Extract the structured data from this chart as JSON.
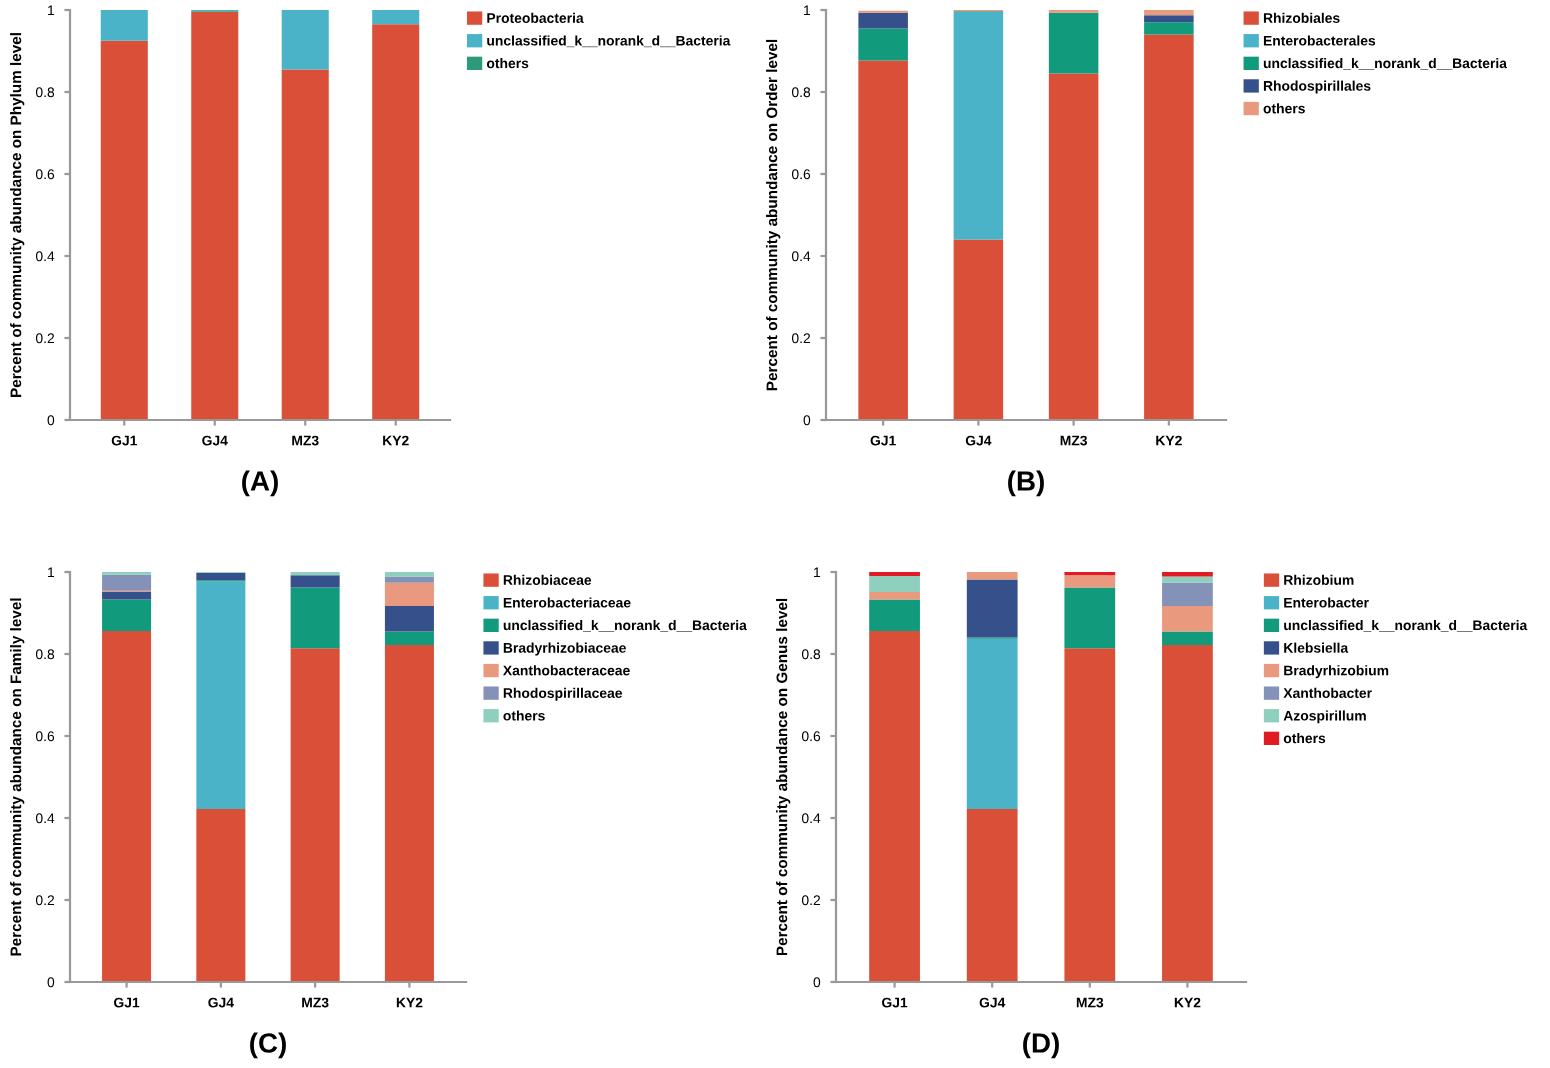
{
  "chart_data": [
    {
      "type": "bar",
      "stacked": true,
      "xlabel": "(A)",
      "ylabel": "Percent of community abundance on Phylum level",
      "categories": [
        "GJ1",
        "GJ4",
        "MZ3",
        "KY2"
      ],
      "ylim": [
        0,
        1
      ],
      "yticks": [
        0,
        0.2,
        0.4,
        0.6,
        0.8,
        1
      ],
      "grid": false,
      "legend": "right",
      "series": [
        {
          "name": "Proteobacteria",
          "color": "#d94f38",
          "values": [
            0.925,
            0.995,
            0.855,
            0.965
          ]
        },
        {
          "name": "unclassified_k__norank_d__Bacteria",
          "color": "#4ab3c8",
          "values": [
            0.075,
            0.003,
            0.145,
            0.035
          ]
        },
        {
          "name": "others",
          "color": "#2e9a7c",
          "values": [
            0,
            0.002,
            0,
            0
          ]
        }
      ]
    },
    {
      "type": "bar",
      "stacked": true,
      "xlabel": "(B)",
      "ylabel": "Percent of community abundance on Order level",
      "categories": [
        "GJ1",
        "GJ4",
        "MZ3",
        "KY2"
      ],
      "ylim": [
        0,
        1
      ],
      "yticks": [
        0,
        0.2,
        0.4,
        0.6,
        0.8,
        1
      ],
      "grid": false,
      "legend": "right",
      "series": [
        {
          "name": "Rhizobiales",
          "color": "#d94f38",
          "values": [
            0.877,
            0.44,
            0.845,
            0.94
          ]
        },
        {
          "name": "Enterobacterales",
          "color": "#4ab3c8",
          "values": [
            0,
            0.555,
            0,
            0
          ]
        },
        {
          "name": "unclassified_k__norank_d__Bacteria",
          "color": "#119a7c",
          "values": [
            0.078,
            0.002,
            0.148,
            0.03
          ]
        },
        {
          "name": "Rhodospirillales",
          "color": "#35508a",
          "values": [
            0.038,
            0,
            0,
            0.017
          ]
        },
        {
          "name": "others",
          "color": "#e99a7e",
          "values": [
            0.005,
            0.003,
            0.007,
            0.013
          ]
        }
      ]
    },
    {
      "type": "bar",
      "stacked": true,
      "xlabel": "(C)",
      "ylabel": "Percent of community abundance on Family level",
      "categories": [
        "GJ1",
        "GJ4",
        "MZ3",
        "KY2"
      ],
      "ylim": [
        0,
        1
      ],
      "yticks": [
        0,
        0.2,
        0.4,
        0.6,
        0.8,
        1
      ],
      "grid": false,
      "legend": "right",
      "series": [
        {
          "name": "Rhizobiaceae",
          "color": "#d94f38",
          "values": [
            0.856,
            0.422,
            0.814,
            0.822
          ]
        },
        {
          "name": "Enterobacteriaceae",
          "color": "#4ab3c8",
          "values": [
            0,
            0.555,
            0,
            0
          ]
        },
        {
          "name": "unclassified_k__norank_d__Bacteria",
          "color": "#119a7c",
          "values": [
            0.077,
            0.003,
            0.148,
            0.033
          ]
        },
        {
          "name": "Bradyrhizobiaceae",
          "color": "#35508a",
          "values": [
            0.018,
            0.018,
            0.03,
            0.062
          ]
        },
        {
          "name": "Xanthobacteraceae",
          "color": "#e99a7e",
          "values": [
            0.003,
            0,
            0,
            0.057
          ]
        },
        {
          "name": "Rhodospirillaceae",
          "color": "#8592b8",
          "values": [
            0.039,
            0,
            0,
            0.015
          ]
        },
        {
          "name": "others",
          "color": "#8ecfbd",
          "values": [
            0.007,
            0.002,
            0.008,
            0.011
          ]
        }
      ]
    },
    {
      "type": "bar",
      "stacked": true,
      "xlabel": "(D)",
      "ylabel": "Percent of community abundance on Genus level",
      "categories": [
        "GJ1",
        "GJ4",
        "MZ3",
        "KY2"
      ],
      "ylim": [
        0,
        1
      ],
      "yticks": [
        0,
        0.2,
        0.4,
        0.6,
        0.8,
        1
      ],
      "grid": false,
      "legend": "right",
      "series": [
        {
          "name": "Rhizobium",
          "color": "#d94f38",
          "values": [
            0.856,
            0.422,
            0.814,
            0.822
          ]
        },
        {
          "name": "Enterobacter",
          "color": "#4ab3c8",
          "values": [
            0,
            0.415,
            0,
            0
          ]
        },
        {
          "name": "unclassified_k__norank_d__Bacteria",
          "color": "#119a7c",
          "values": [
            0.077,
            0.003,
            0.148,
            0.033
          ]
        },
        {
          "name": "Klebsiella",
          "color": "#35508a",
          "values": [
            0,
            0.142,
            0,
            0
          ]
        },
        {
          "name": "Bradyrhizobium",
          "color": "#e99a7e",
          "values": [
            0.018,
            0.018,
            0.03,
            0.062
          ]
        },
        {
          "name": "Xanthobacter",
          "color": "#8592b8",
          "values": [
            0,
            0,
            0,
            0.057
          ]
        },
        {
          "name": "Azospirillum",
          "color": "#8ecfbd",
          "values": [
            0.039,
            0,
            0,
            0.015
          ]
        },
        {
          "name": "others",
          "color": "#e01b23",
          "values": [
            0.01,
            0,
            0.008,
            0.011
          ]
        }
      ]
    }
  ]
}
